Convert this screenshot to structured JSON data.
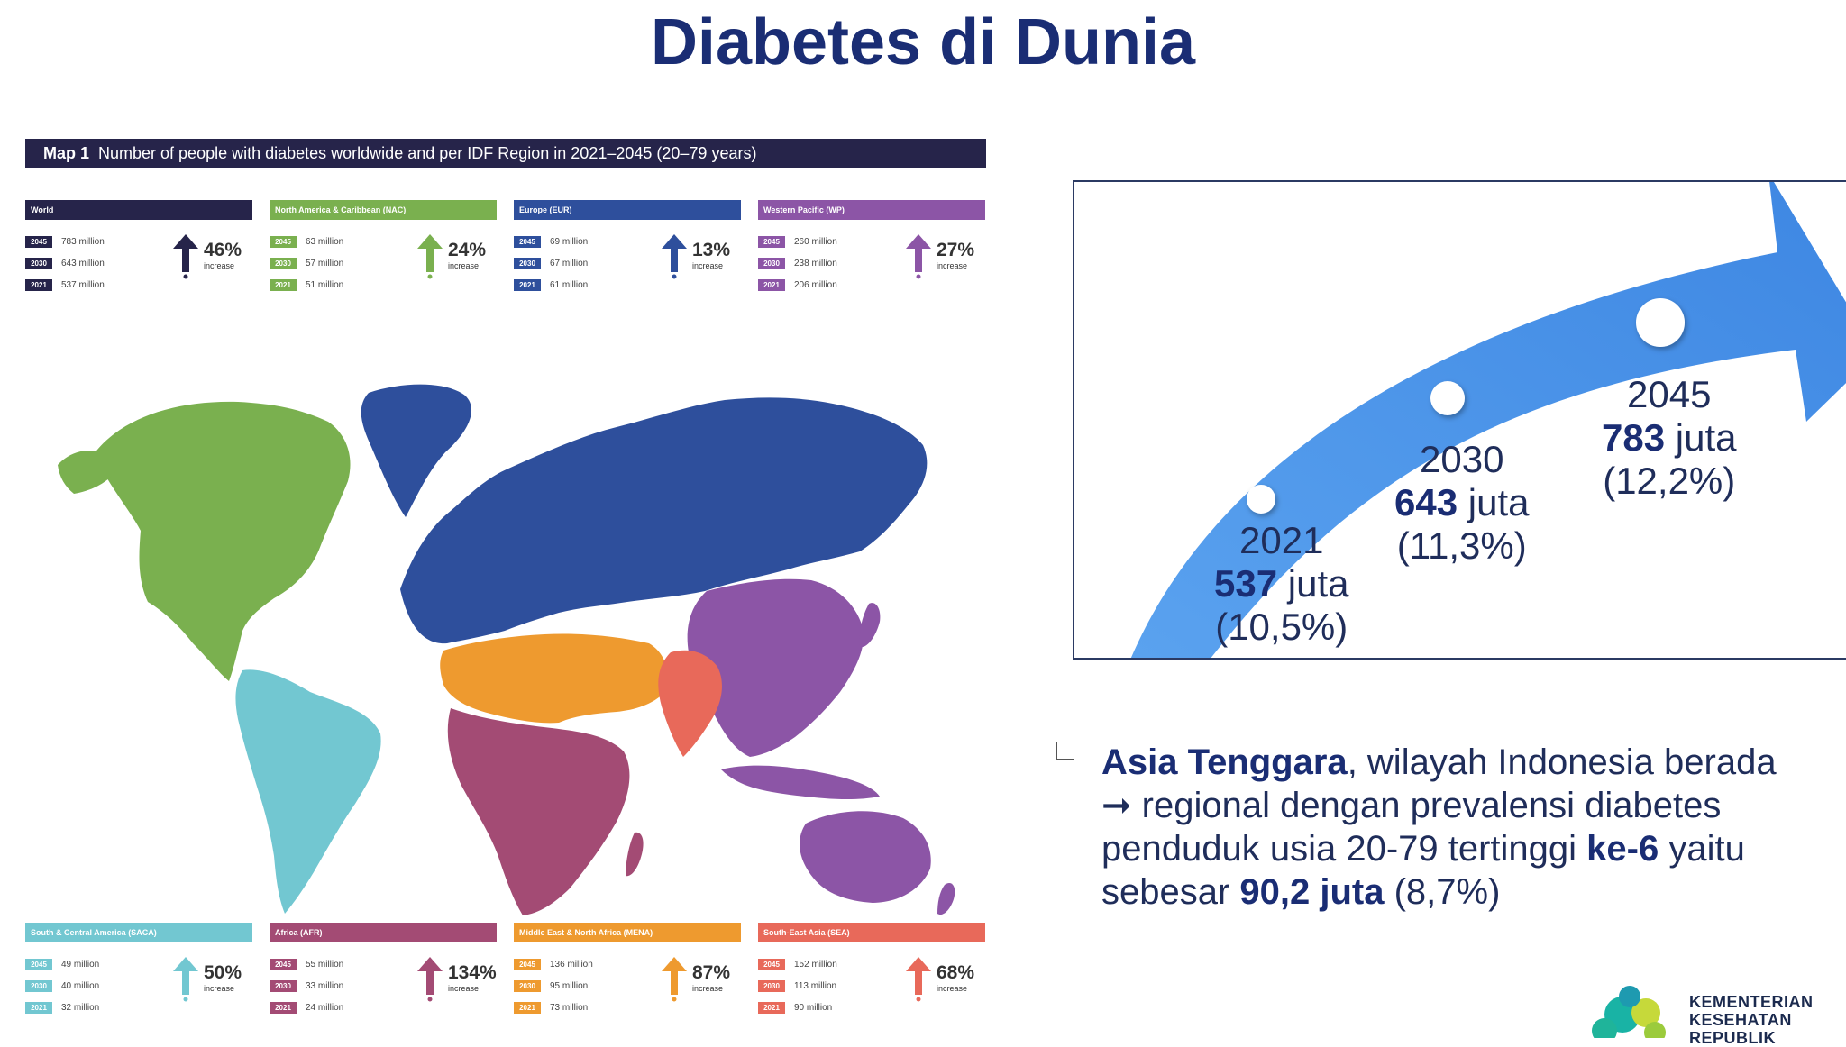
{
  "title": "Diabetes di Dunia",
  "map_caption": {
    "prefix": "Map 1",
    "text": "Number of people with diabetes worldwide and per IDF Region in 2021–2045 (20–79 years)"
  },
  "regions_top": [
    {
      "name": "World",
      "color": "#26244a",
      "rows": [
        {
          "year": "2045",
          "value": "783 million"
        },
        {
          "year": "2030",
          "value": "643 million"
        },
        {
          "year": "2021",
          "value": "537 million"
        }
      ],
      "pct": "46%",
      "inc": "increase"
    },
    {
      "name": "North America & Caribbean (NAC)",
      "color": "#7ab04f",
      "rows": [
        {
          "year": "2045",
          "value": "63 million"
        },
        {
          "year": "2030",
          "value": "57 million"
        },
        {
          "year": "2021",
          "value": "51 million"
        }
      ],
      "pct": "24%",
      "inc": "increase"
    },
    {
      "name": "Europe (EUR)",
      "color": "#2e4f9c",
      "rows": [
        {
          "year": "2045",
          "value": "69 million"
        },
        {
          "year": "2030",
          "value": "67 million"
        },
        {
          "year": "2021",
          "value": "61 million"
        }
      ],
      "pct": "13%",
      "inc": "increase"
    },
    {
      "name": "Western Pacific (WP)",
      "color": "#8c55a6",
      "rows": [
        {
          "year": "2045",
          "value": "260 million"
        },
        {
          "year": "2030",
          "value": "238 million"
        },
        {
          "year": "2021",
          "value": "206 million"
        }
      ],
      "pct": "27%",
      "inc": "increase"
    }
  ],
  "regions_bottom": [
    {
      "name": "South & Central America (SACA)",
      "color": "#72c7d1",
      "rows": [
        {
          "year": "2045",
          "value": "49 million"
        },
        {
          "year": "2030",
          "value": "40 million"
        },
        {
          "year": "2021",
          "value": "32 million"
        }
      ],
      "pct": "50%",
      "inc": "increase"
    },
    {
      "name": "Africa (AFR)",
      "color": "#a34b74",
      "rows": [
        {
          "year": "2045",
          "value": "55 million"
        },
        {
          "year": "2030",
          "value": "33 million"
        },
        {
          "year": "2021",
          "value": "24 million"
        }
      ],
      "pct": "134%",
      "inc": "increase"
    },
    {
      "name": "Middle East & North Africa (MENA)",
      "color": "#ee9a2f",
      "rows": [
        {
          "year": "2045",
          "value": "136 million"
        },
        {
          "year": "2030",
          "value": "95 million"
        },
        {
          "year": "2021",
          "value": "73 million"
        }
      ],
      "pct": "87%",
      "inc": "increase"
    },
    {
      "name": "South-East Asia (SEA)",
      "color": "#e8695a",
      "rows": [
        {
          "year": "2045",
          "value": "152 million"
        },
        {
          "year": "2030",
          "value": "113 million"
        },
        {
          "year": "2021",
          "value": "90 million"
        }
      ],
      "pct": "68%",
      "inc": "increase"
    }
  ],
  "milestones": [
    {
      "year": "2021",
      "value": "537",
      "unit": "juta",
      "pct": "(10,5%)"
    },
    {
      "year": "2030",
      "value": "643",
      "unit": "juta",
      "pct": "(11,3%)"
    },
    {
      "year": "2045",
      "value": "783",
      "unit": "juta",
      "pct": "(12,2%)"
    }
  ],
  "bullet": {
    "bold1": "Asia Tenggara",
    "t1": ", wilayah Indonesia berada",
    "arrow": "➞",
    "t2": " regional dengan prevalensi diabetes penduduk usia 20-79 tertinggi ",
    "bold2": "ke-6",
    "t3": " yaitu sebesar ",
    "bold3": "90,2 juta",
    "t4": " (8,7%)"
  },
  "logo": {
    "line1": "KEMENTERIAN",
    "line2": "KESEHATAN",
    "line3": "REPUBLIK"
  },
  "colors": {
    "title": "#1a2d74",
    "arrow": "#4f95e8",
    "nac": "#7ab04f",
    "eur": "#2e4f9c",
    "wp": "#8c55a6",
    "saca": "#72c7d1",
    "afr": "#a34b74",
    "mena": "#ee9a2f",
    "sea": "#e8695a"
  }
}
